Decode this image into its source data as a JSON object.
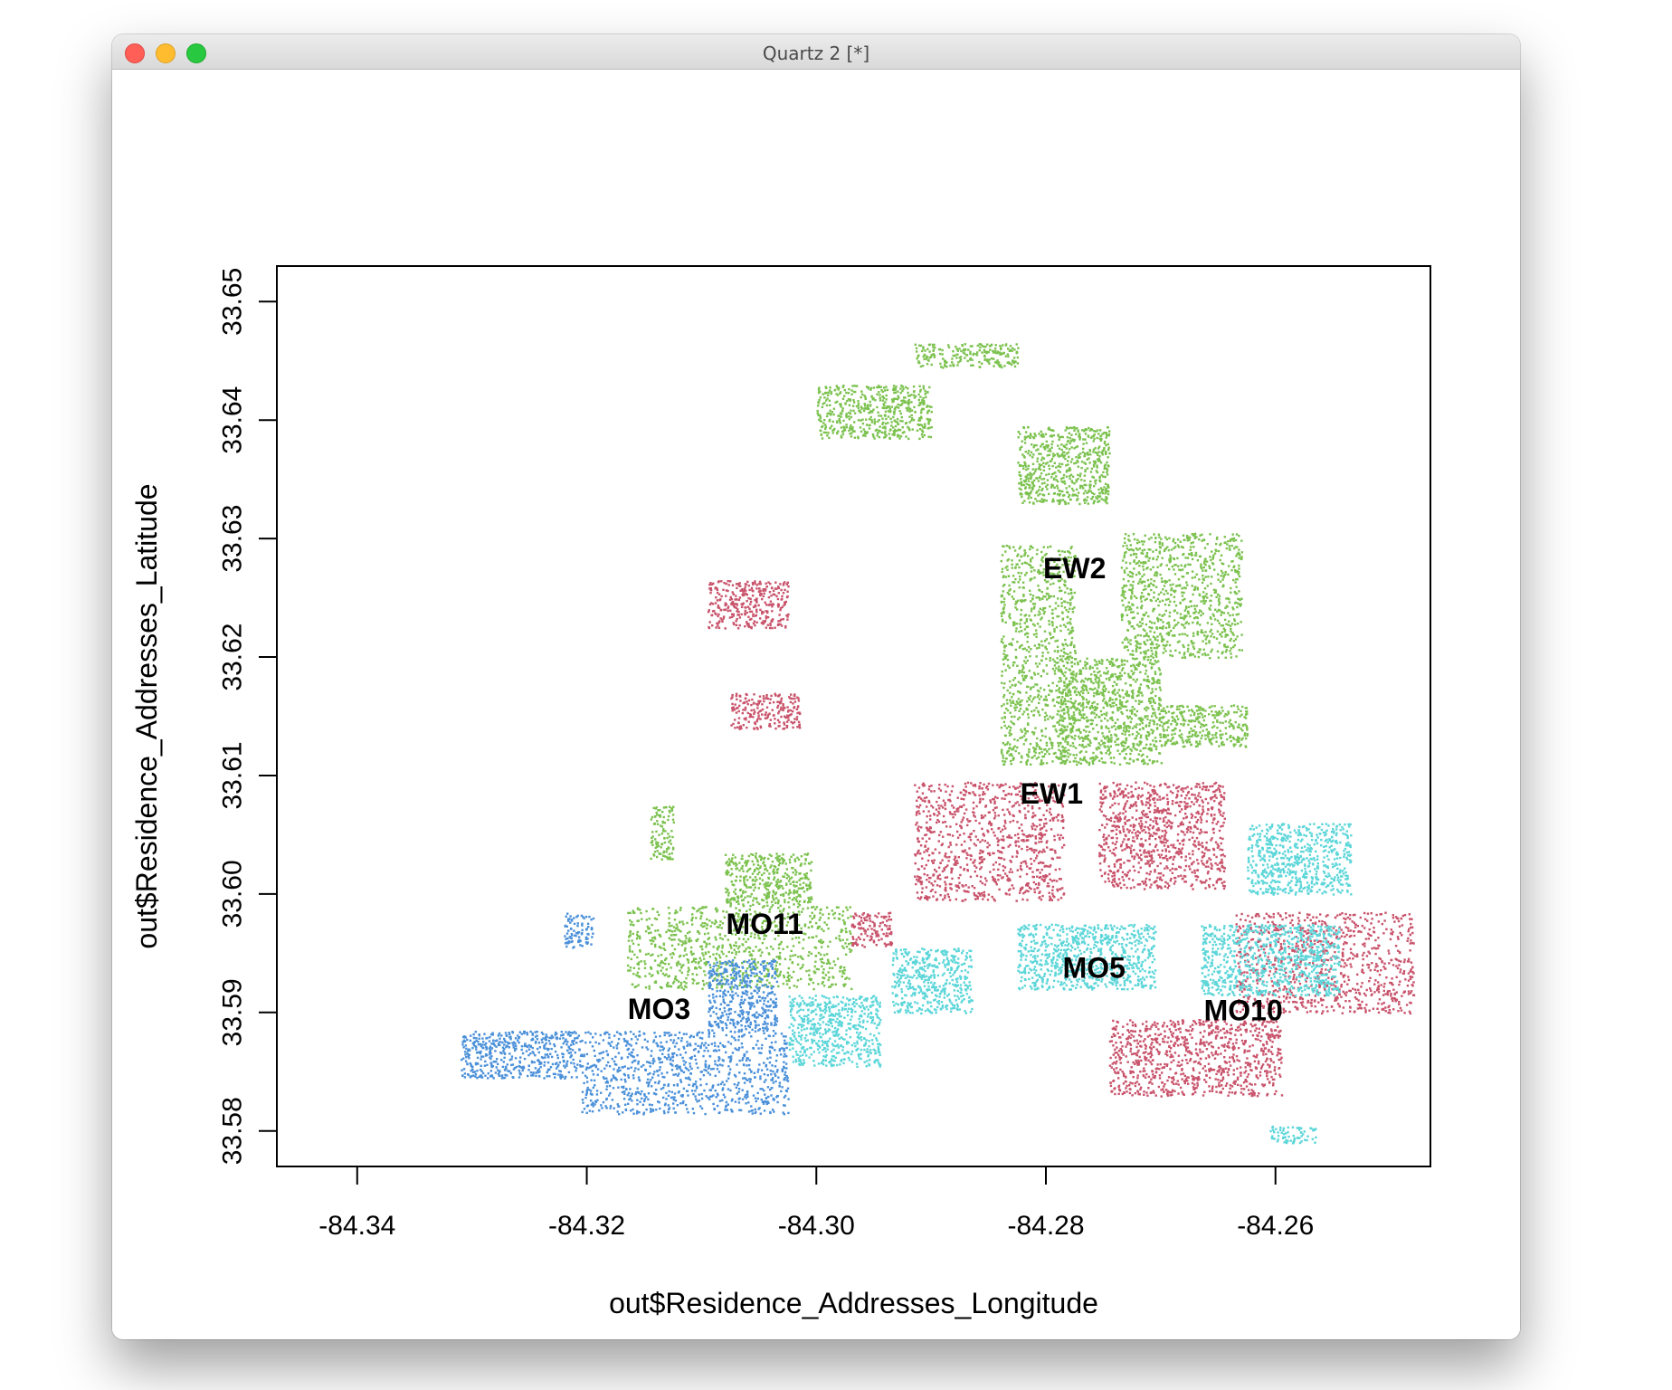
{
  "window": {
    "title": "Quartz 2 [*]"
  },
  "colors": {
    "red": "#c9536b",
    "green": "#7cc24f",
    "blue": "#4a90d9",
    "cyan": "#5cd6d9"
  },
  "chart_data": {
    "type": "scatter",
    "xlabel": "out$Residence_Addresses_Longitude",
    "ylabel": "out$Residence_Addresses_Latitude",
    "xlim": [
      -84.347,
      -84.2465
    ],
    "ylim": [
      33.577,
      33.653
    ],
    "x_ticks": [
      -84.34,
      -84.32,
      -84.3,
      -84.28,
      -84.26
    ],
    "x_tick_labels": [
      "-84.34",
      "-84.32",
      "-84.30",
      "-84.28",
      "-84.26"
    ],
    "y_ticks": [
      33.58,
      33.59,
      33.6,
      33.61,
      33.62,
      33.63,
      33.64,
      33.65
    ],
    "y_tick_labels": [
      "33.58",
      "33.59",
      "33.60",
      "33.61",
      "33.62",
      "33.63",
      "33.64",
      "33.65"
    ],
    "grid": false,
    "legend": "none",
    "labels": [
      {
        "text": "EW2",
        "x": -84.2775,
        "y": 33.6275
      },
      {
        "text": "EW1",
        "x": -84.2795,
        "y": 33.6085
      },
      {
        "text": "MO11",
        "x": -84.3045,
        "y": 33.5975
      },
      {
        "text": "MO5",
        "x": -84.2758,
        "y": 33.5938
      },
      {
        "text": "MO3",
        "x": -84.3137,
        "y": 33.5903
      },
      {
        "text": "MO10",
        "x": -84.2628,
        "y": 33.5902
      }
    ],
    "series": [
      {
        "color": "green",
        "regions": [
          {
            "x": [
              -84.3,
              -84.29
            ],
            "y": [
              33.6385,
              33.643
            ]
          },
          {
            "x": [
              -84.2915,
              -84.2825
            ],
            "y": [
              33.6445,
              33.6465
            ]
          },
          {
            "x": [
              -84.2825,
              -84.2745
            ],
            "y": [
              33.633,
              33.6395
            ]
          },
          {
            "x": [
              -84.2735,
              -84.263
            ],
            "y": [
              33.62,
              33.6305
            ]
          },
          {
            "x": [
              -84.284,
              -84.2775
            ],
            "y": [
              33.611,
              33.6295
            ]
          },
          {
            "x": [
              -84.279,
              -84.27
            ],
            "y": [
              33.611,
              33.62
            ]
          },
          {
            "x": [
              -84.27,
              -84.2625
            ],
            "y": [
              33.6125,
              33.616
            ]
          },
          {
            "x": [
              -84.3145,
              -84.3125
            ],
            "y": [
              33.603,
              33.6075
            ]
          },
          {
            "x": [
              -84.308,
              -84.3005
            ],
            "y": [
              33.599,
              33.6035
            ]
          },
          {
            "x": [
              -84.3165,
              -84.297
            ],
            "y": [
              33.592,
              33.599
            ]
          }
        ]
      },
      {
        "color": "red",
        "regions": [
          {
            "x": [
              -84.3095,
              -84.3025
            ],
            "y": [
              33.6225,
              33.6265
            ]
          },
          {
            "x": [
              -84.3075,
              -84.3015
            ],
            "y": [
              33.614,
              33.617
            ]
          },
          {
            "x": [
              -84.2915,
              -84.2785
            ],
            "y": [
              33.5995,
              33.6095
            ]
          },
          {
            "x": [
              -84.2755,
              -84.2645
            ],
            "y": [
              33.6005,
              33.6095
            ]
          },
          {
            "x": [
              -84.2745,
              -84.2595
            ],
            "y": [
              33.583,
              33.5895
            ]
          },
          {
            "x": [
              -84.2635,
              -84.248
            ],
            "y": [
              33.59,
              33.5985
            ]
          },
          {
            "x": [
              -84.297,
              -84.2935
            ],
            "y": [
              33.5955,
              33.5985
            ]
          }
        ]
      },
      {
        "color": "cyan",
        "regions": [
          {
            "x": [
              -84.2625,
              -84.2535
            ],
            "y": [
              33.6,
              33.606
            ]
          },
          {
            "x": [
              -84.2825,
              -84.2705
            ],
            "y": [
              33.592,
              33.5975
            ]
          },
          {
            "x": [
              -84.2665,
              -84.2545
            ],
            "y": [
              33.5915,
              33.5975
            ]
          },
          {
            "x": [
              -84.2935,
              -84.2865
            ],
            "y": [
              33.59,
              33.5955
            ]
          },
          {
            "x": [
              -84.3025,
              -84.2945
            ],
            "y": [
              33.5855,
              33.5915
            ]
          },
          {
            "x": [
              -84.2605,
              -84.2565
            ],
            "y": [
              33.579,
              33.5805
            ]
          }
        ]
      },
      {
        "color": "blue",
        "regions": [
          {
            "x": [
              -84.331,
              -84.3205
            ],
            "y": [
              33.5845,
              33.5885
            ]
          },
          {
            "x": [
              -84.3205,
              -84.3025
            ],
            "y": [
              33.5815,
              33.5885
            ]
          },
          {
            "x": [
              -84.3095,
              -84.3035
            ],
            "y": [
              33.5885,
              33.5945
            ]
          },
          {
            "x": [
              -84.322,
              -84.3195
            ],
            "y": [
              33.5955,
              33.5985
            ]
          }
        ]
      }
    ]
  }
}
